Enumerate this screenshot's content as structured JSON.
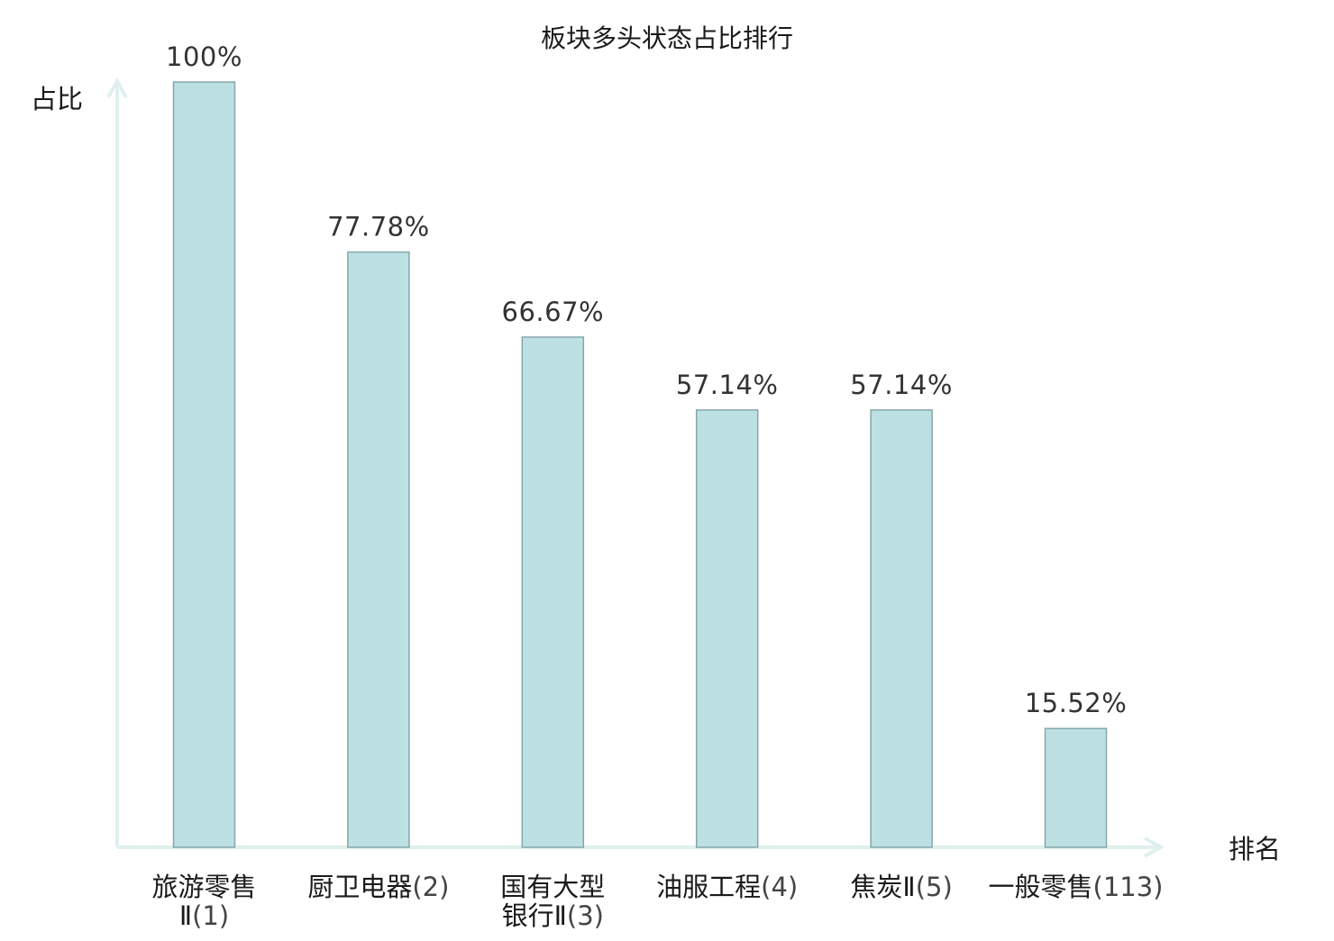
{
  "chart_data": {
    "type": "bar",
    "title": "板块多头状态占比排行",
    "xlabel": "排名",
    "ylabel": "占比",
    "ylim": [
      0,
      100
    ],
    "grid": false,
    "categories": [
      {
        "name_lines": [
          "旅游零售",
          "Ⅱ"
        ],
        "rank": "(1)",
        "highlight": false
      },
      {
        "name_lines": [
          "厨卫电器"
        ],
        "rank": "(2)",
        "highlight": false
      },
      {
        "name_lines": [
          "国有大型",
          "银行Ⅱ"
        ],
        "rank": "(3)",
        "highlight": false
      },
      {
        "name_lines": [
          "油服工程"
        ],
        "rank": "(4)",
        "highlight": false
      },
      {
        "name_lines": [
          "焦炭Ⅱ"
        ],
        "rank": "(5)",
        "highlight": false
      },
      {
        "name_lines": [
          "一般零售"
        ],
        "rank": "(113)",
        "highlight": true
      }
    ],
    "values": [
      100,
      77.78,
      66.67,
      57.14,
      57.14,
      15.52
    ],
    "value_labels": [
      "100%",
      "77.78%",
      "66.67%",
      "57.14%",
      "57.14%",
      "15.52%"
    ]
  },
  "colors": {
    "bar_fill": "#bde0e2",
    "bar_stroke": "#86a8ab",
    "axis": "#dff0ee",
    "highlight": "#e02020",
    "text": "#1a1a1a"
  }
}
